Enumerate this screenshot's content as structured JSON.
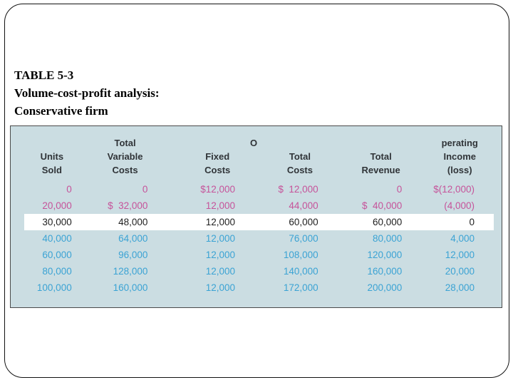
{
  "slide": {
    "title_lines": [
      "TABLE 5-3",
      "Volume-cost-profit analysis:",
      "Conservative firm"
    ]
  },
  "table": {
    "stray_header_char": "O",
    "columns": [
      {
        "lines": [
          "",
          "Units",
          "Sold"
        ]
      },
      {
        "lines": [
          "Total",
          "Variable",
          "Costs"
        ]
      },
      {
        "lines": [
          "",
          "Fixed",
          "Costs"
        ]
      },
      {
        "lines": [
          "",
          "Total",
          "Costs"
        ]
      },
      {
        "lines": [
          "",
          "Total",
          "Revenue"
        ]
      },
      {
        "lines": [
          "perating",
          "Income",
          "(loss)"
        ]
      }
    ],
    "rows": [
      {
        "style": "pink",
        "highlight": false,
        "cells": [
          "0",
          "0",
          "$12,000",
          "$  12,000",
          "0",
          "$(12,000)"
        ]
      },
      {
        "style": "pink",
        "highlight": false,
        "cells": [
          "20,000",
          "$  32,000",
          "12,000",
          "44,000",
          "$  40,000",
          "(4,000)"
        ]
      },
      {
        "style": "dark",
        "highlight": true,
        "cells": [
          "30,000",
          "48,000",
          "12,000",
          "60,000",
          "60,000",
          "0"
        ]
      },
      {
        "style": "blue",
        "highlight": false,
        "cells": [
          "40,000",
          "64,000",
          "12,000",
          "76,000",
          "80,000",
          "4,000"
        ]
      },
      {
        "style": "blue",
        "highlight": false,
        "cells": [
          "60,000",
          "96,000",
          "12,000",
          "108,000",
          "120,000",
          "12,000"
        ]
      },
      {
        "style": "blue",
        "highlight": false,
        "cells": [
          "80,000",
          "128,000",
          "12,000",
          "140,000",
          "160,000",
          "20,000"
        ]
      },
      {
        "style": "blue",
        "highlight": false,
        "cells": [
          "100,000",
          "160,000",
          "12,000",
          "172,000",
          "200,000",
          "28,000"
        ]
      }
    ],
    "colors": {
      "pink": "#c6539a",
      "blue": "#3ba3d4",
      "dark_text": "#1e1e1e",
      "header_text": "#303438",
      "table_background": "#cbdde2",
      "highlight_band": "#ffffff",
      "slide_border": "#111111"
    }
  }
}
